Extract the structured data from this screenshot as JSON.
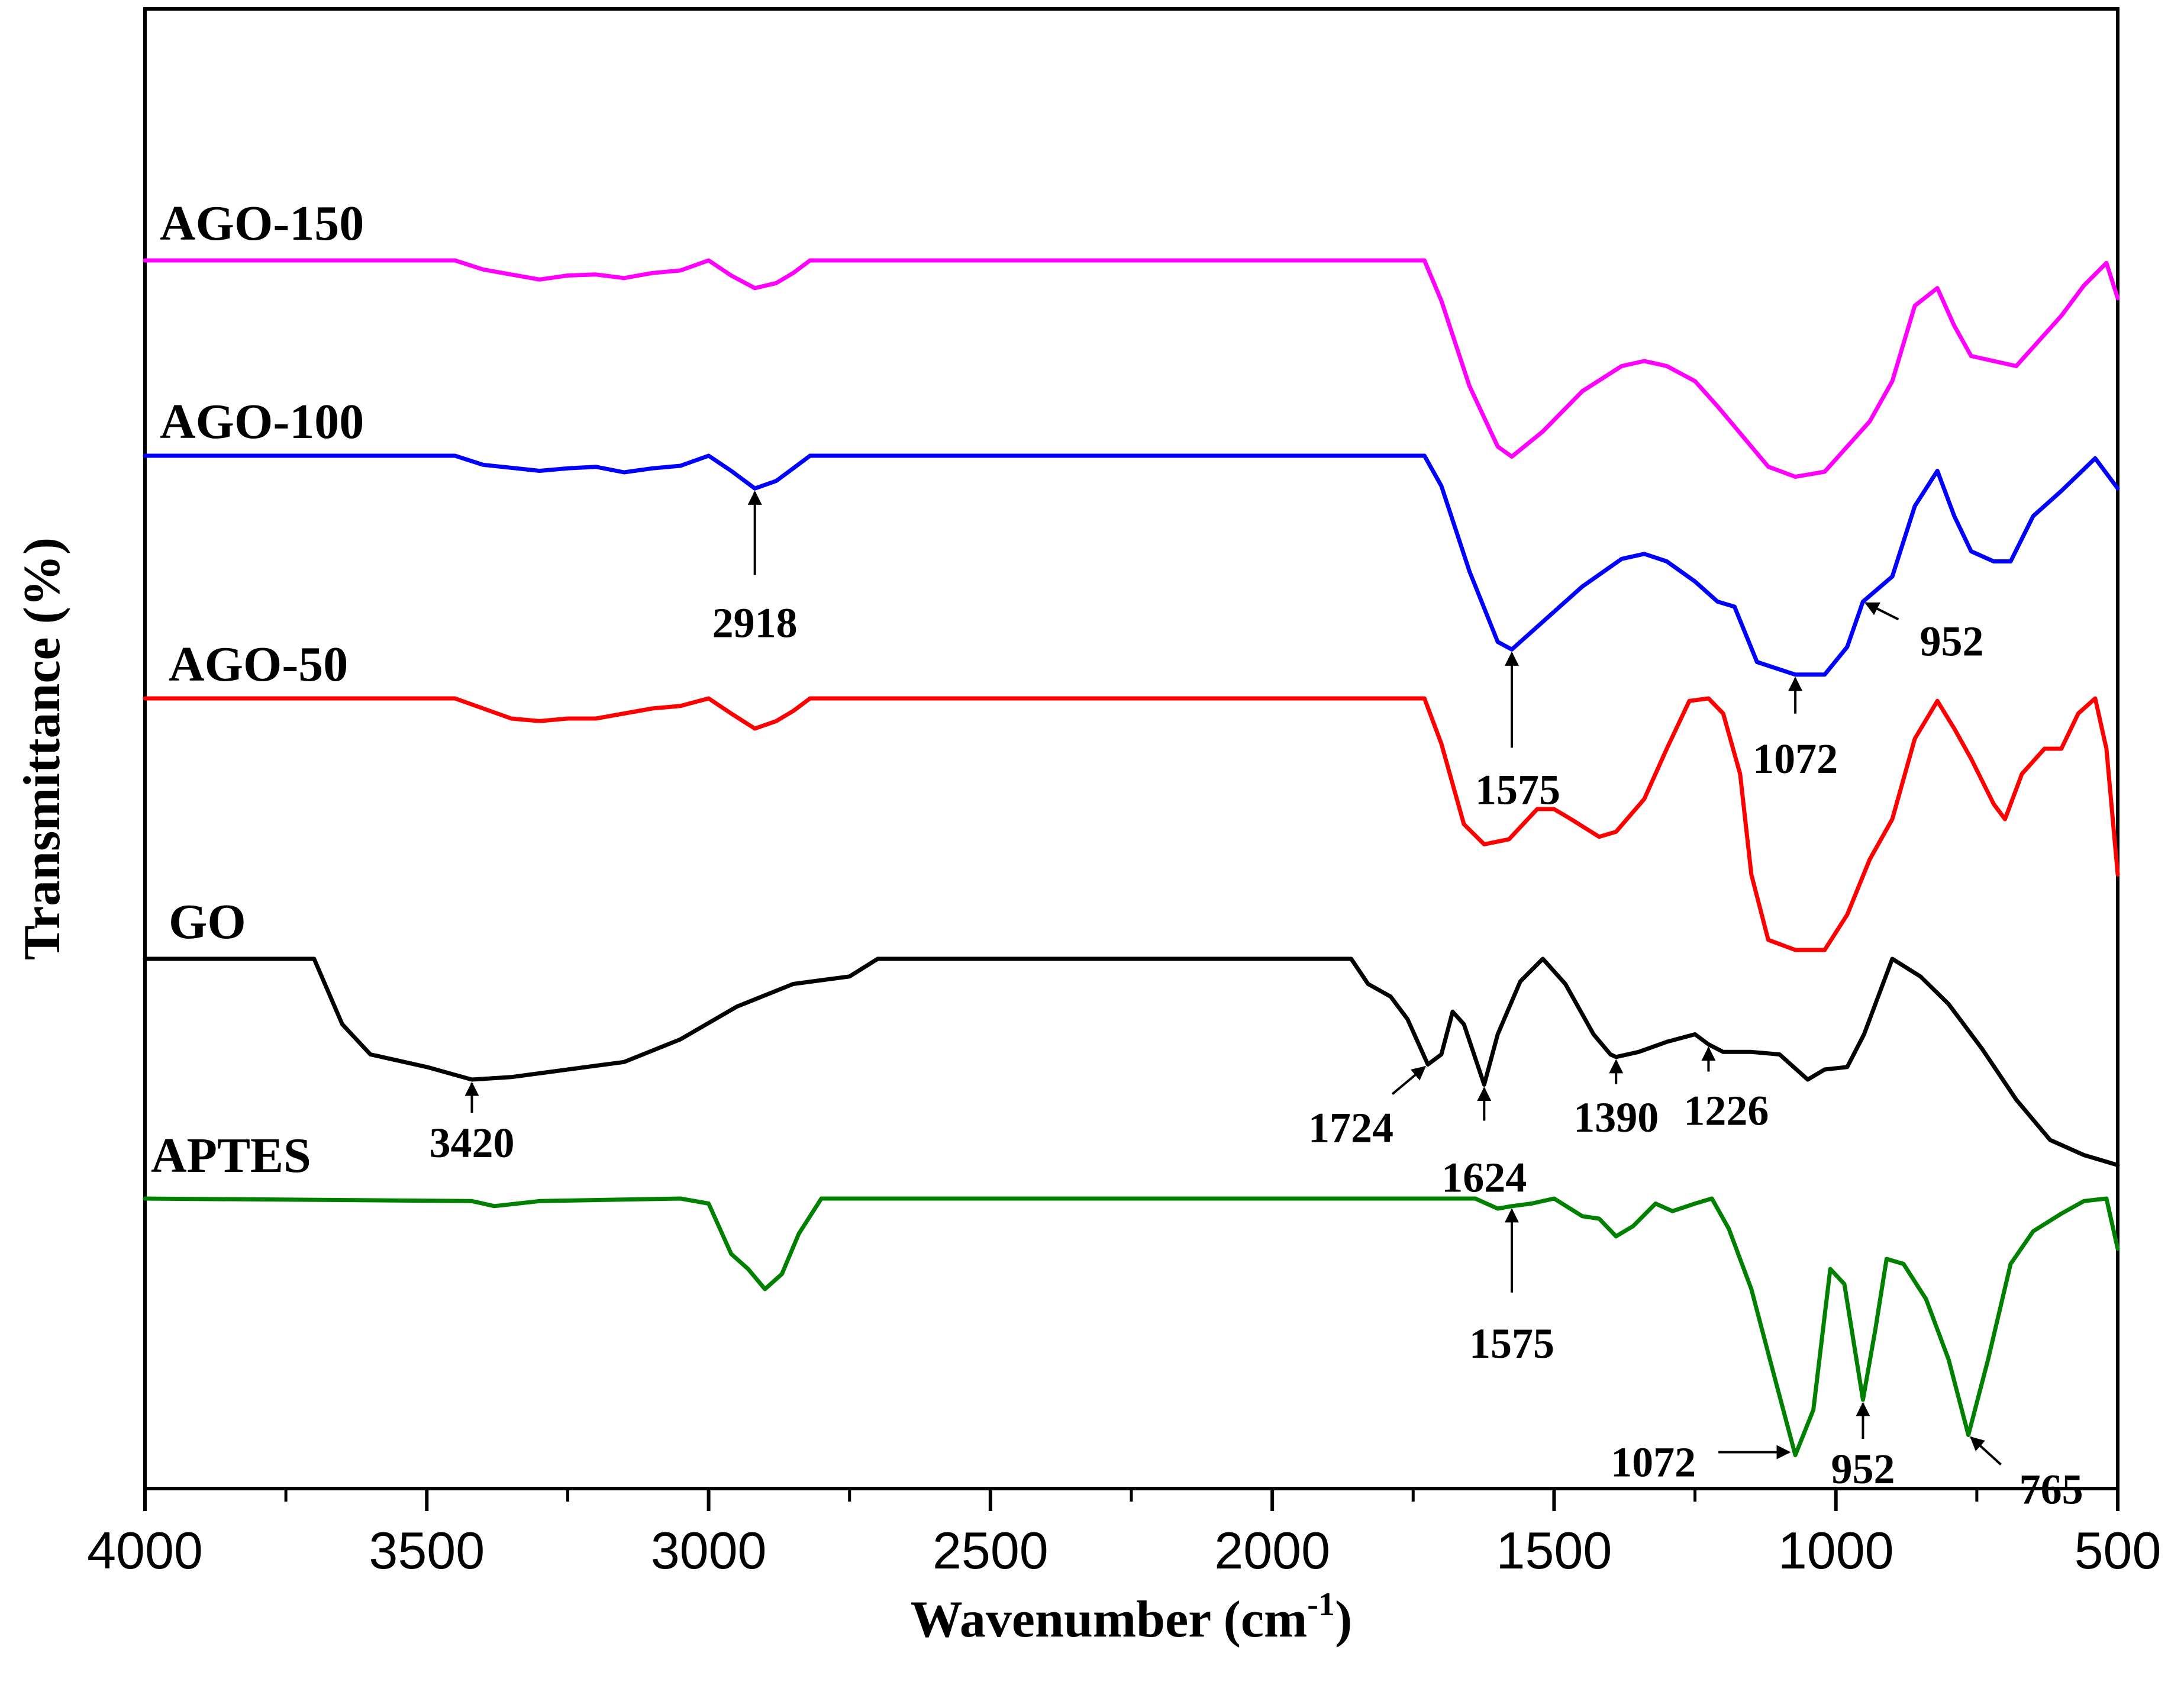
{
  "chart_data": {
    "type": "line",
    "title": "",
    "xlabel": "Wavenumber (cm",
    "xlabel_sup": "-1",
    "xlabel_close": ")",
    "ylabel": "Transmittance (%)",
    "xlim": [
      4000,
      500
    ],
    "x_ticks": [
      4000,
      3500,
      3000,
      2500,
      2000,
      1500,
      1000,
      500
    ],
    "series": [
      {
        "name": "AGO-150",
        "color": "#ff00ff",
        "baseline": 0.0,
        "points": [
          [
            4000,
            0
          ],
          [
            3450,
            0
          ],
          [
            3400,
            -0.18
          ],
          [
            3300,
            -0.38
          ],
          [
            3250,
            -0.3
          ],
          [
            3200,
            -0.28
          ],
          [
            3150,
            -0.35
          ],
          [
            3100,
            -0.25
          ],
          [
            3050,
            -0.2
          ],
          [
            3000,
            0
          ],
          [
            2960,
            -0.3
          ],
          [
            2918,
            -0.55
          ],
          [
            2880,
            -0.45
          ],
          [
            2850,
            -0.25
          ],
          [
            2820,
            0
          ],
          [
            1730,
            0
          ],
          [
            1700,
            -0.8
          ],
          [
            1650,
            -2.5
          ],
          [
            1600,
            -3.7
          ],
          [
            1575,
            -3.9
          ],
          [
            1520,
            -3.4
          ],
          [
            1450,
            -2.6
          ],
          [
            1380,
            -2.1
          ],
          [
            1340,
            -2.0
          ],
          [
            1300,
            -2.1
          ],
          [
            1250,
            -2.4
          ],
          [
            1210,
            -2.9
          ],
          [
            1180,
            -3.3
          ],
          [
            1120,
            -4.1
          ],
          [
            1072,
            -4.3
          ],
          [
            1020,
            -4.2
          ],
          [
            980,
            -3.7
          ],
          [
            940,
            -3.2
          ],
          [
            900,
            -2.4
          ],
          [
            860,
            -0.9
          ],
          [
            820,
            -0.55
          ],
          [
            790,
            -1.3
          ],
          [
            760,
            -1.9
          ],
          [
            720,
            -2.0
          ],
          [
            680,
            -2.1
          ],
          [
            640,
            -1.6
          ],
          [
            600,
            -1.1
          ],
          [
            560,
            -0.5
          ],
          [
            520,
            -0.05
          ],
          [
            500,
            -0.75
          ]
        ]
      },
      {
        "name": "AGO-100",
        "color": "#0000ff",
        "baseline": 0.0,
        "points": [
          [
            4000,
            0
          ],
          [
            3450,
            0
          ],
          [
            3400,
            -0.18
          ],
          [
            3300,
            -0.3
          ],
          [
            3250,
            -0.25
          ],
          [
            3200,
            -0.22
          ],
          [
            3150,
            -0.33
          ],
          [
            3100,
            -0.25
          ],
          [
            3050,
            -0.2
          ],
          [
            3000,
            0
          ],
          [
            2960,
            -0.3
          ],
          [
            2918,
            -0.65
          ],
          [
            2880,
            -0.5
          ],
          [
            2850,
            -0.25
          ],
          [
            2820,
            0
          ],
          [
            1730,
            0
          ],
          [
            1700,
            -0.6
          ],
          [
            1650,
            -2.3
          ],
          [
            1600,
            -3.7
          ],
          [
            1575,
            -3.85
          ],
          [
            1520,
            -3.3
          ],
          [
            1450,
            -2.6
          ],
          [
            1380,
            -2.05
          ],
          [
            1340,
            -1.95
          ],
          [
            1300,
            -2.1
          ],
          [
            1250,
            -2.5
          ],
          [
            1210,
            -2.9
          ],
          [
            1180,
            -3.0
          ],
          [
            1140,
            -4.1
          ],
          [
            1072,
            -4.35
          ],
          [
            1020,
            -4.35
          ],
          [
            980,
            -3.8
          ],
          [
            952,
            -2.9
          ],
          [
            900,
            -2.4
          ],
          [
            860,
            -1.0
          ],
          [
            820,
            -0.3
          ],
          [
            790,
            -1.2
          ],
          [
            760,
            -1.9
          ],
          [
            720,
            -2.1
          ],
          [
            690,
            -2.1
          ],
          [
            650,
            -1.2
          ],
          [
            600,
            -0.7
          ],
          [
            540,
            -0.05
          ],
          [
            500,
            -0.65
          ]
        ]
      },
      {
        "name": "AGO-50",
        "color": "#ff0000",
        "baseline": 0.0,
        "points": [
          [
            4000,
            0
          ],
          [
            3450,
            0
          ],
          [
            3400,
            -0.2
          ],
          [
            3350,
            -0.4
          ],
          [
            3300,
            -0.45
          ],
          [
            3250,
            -0.4
          ],
          [
            3200,
            -0.4
          ],
          [
            3150,
            -0.3
          ],
          [
            3100,
            -0.2
          ],
          [
            3050,
            -0.15
          ],
          [
            3000,
            0
          ],
          [
            2960,
            -0.3
          ],
          [
            2918,
            -0.6
          ],
          [
            2880,
            -0.45
          ],
          [
            2850,
            -0.25
          ],
          [
            2820,
            0
          ],
          [
            1730,
            0
          ],
          [
            1700,
            -0.9
          ],
          [
            1660,
            -2.5
          ],
          [
            1624,
            -2.9
          ],
          [
            1580,
            -2.8
          ],
          [
            1530,
            -2.2
          ],
          [
            1500,
            -2.2
          ],
          [
            1470,
            -2.4
          ],
          [
            1420,
            -2.75
          ],
          [
            1390,
            -2.65
          ],
          [
            1340,
            -2.0
          ],
          [
            1300,
            -1.0
          ],
          [
            1260,
            -0.05
          ],
          [
            1226,
            0
          ],
          [
            1200,
            -0.3
          ],
          [
            1170,
            -1.5
          ],
          [
            1150,
            -3.5
          ],
          [
            1120,
            -4.8
          ],
          [
            1072,
            -5.0
          ],
          [
            1020,
            -5.0
          ],
          [
            980,
            -4.3
          ],
          [
            940,
            -3.2
          ],
          [
            900,
            -2.4
          ],
          [
            860,
            -0.8
          ],
          [
            820,
            -0.05
          ],
          [
            790,
            -0.6
          ],
          [
            760,
            -1.2
          ],
          [
            720,
            -2.1
          ],
          [
            700,
            -2.4
          ],
          [
            670,
            -1.5
          ],
          [
            630,
            -1.0
          ],
          [
            600,
            -1.0
          ],
          [
            570,
            -0.3
          ],
          [
            540,
            0
          ],
          [
            520,
            -1.0
          ],
          [
            500,
            -3.5
          ]
        ]
      },
      {
        "name": "GO",
        "color": "#000000",
        "baseline": 0.0,
        "points": [
          [
            4000,
            0
          ],
          [
            3700,
            0
          ],
          [
            3650,
            -1.3
          ],
          [
            3600,
            -1.9
          ],
          [
            3500,
            -2.15
          ],
          [
            3420,
            -2.4
          ],
          [
            3350,
            -2.35
          ],
          [
            3250,
            -2.2
          ],
          [
            3150,
            -2.05
          ],
          [
            3050,
            -1.6
          ],
          [
            2950,
            -0.95
          ],
          [
            2850,
            -0.5
          ],
          [
            2750,
            -0.35
          ],
          [
            2700,
            0
          ],
          [
            1860,
            0
          ],
          [
            1830,
            -0.5
          ],
          [
            1790,
            -0.75
          ],
          [
            1760,
            -1.2
          ],
          [
            1724,
            -2.1
          ],
          [
            1700,
            -1.9
          ],
          [
            1680,
            -1.05
          ],
          [
            1660,
            -1.3
          ],
          [
            1624,
            -2.5
          ],
          [
            1600,
            -1.5
          ],
          [
            1560,
            -0.45
          ],
          [
            1520,
            0
          ],
          [
            1480,
            -0.5
          ],
          [
            1430,
            -1.5
          ],
          [
            1400,
            -1.9
          ],
          [
            1390,
            -1.95
          ],
          [
            1350,
            -1.85
          ],
          [
            1300,
            -1.65
          ],
          [
            1250,
            -1.5
          ],
          [
            1226,
            -1.7
          ],
          [
            1200,
            -1.85
          ],
          [
            1150,
            -1.85
          ],
          [
            1100,
            -1.9
          ],
          [
            1050,
            -2.4
          ],
          [
            1020,
            -2.2
          ],
          [
            980,
            -2.15
          ],
          [
            950,
            -1.5
          ],
          [
            900,
            0
          ],
          [
            850,
            -0.35
          ],
          [
            800,
            -0.9
          ],
          [
            740,
            -1.8
          ],
          [
            680,
            -2.8
          ],
          [
            620,
            -3.6
          ],
          [
            560,
            -3.9
          ],
          [
            500,
            -4.1
          ]
        ]
      },
      {
        "name": "APTES",
        "color": "#008000",
        "baseline": 0.0,
        "points": [
          [
            4000,
            0
          ],
          [
            3420,
            -0.05
          ],
          [
            3380,
            -0.15
          ],
          [
            3300,
            -0.05
          ],
          [
            3050,
            0
          ],
          [
            3000,
            -0.1
          ],
          [
            2960,
            -1.1
          ],
          [
            2930,
            -1.4
          ],
          [
            2900,
            -1.8
          ],
          [
            2870,
            -1.5
          ],
          [
            2840,
            -0.7
          ],
          [
            2800,
            0
          ],
          [
            1640,
            0
          ],
          [
            1600,
            -0.2
          ],
          [
            1575,
            -0.15
          ],
          [
            1540,
            -0.1
          ],
          [
            1500,
            0
          ],
          [
            1450,
            -0.35
          ],
          [
            1420,
            -0.4
          ],
          [
            1390,
            -0.75
          ],
          [
            1360,
            -0.55
          ],
          [
            1320,
            -0.1
          ],
          [
            1290,
            -0.25
          ],
          [
            1250,
            -0.1
          ],
          [
            1220,
            0
          ],
          [
            1190,
            -0.6
          ],
          [
            1150,
            -1.8
          ],
          [
            1110,
            -3.5
          ],
          [
            1072,
            -5.1
          ],
          [
            1040,
            -4.2
          ],
          [
            1010,
            -1.4
          ],
          [
            985,
            -1.7
          ],
          [
            952,
            -4.0
          ],
          [
            930,
            -2.6
          ],
          [
            910,
            -1.2
          ],
          [
            880,
            -1.3
          ],
          [
            840,
            -2.0
          ],
          [
            800,
            -3.2
          ],
          [
            765,
            -4.7
          ],
          [
            730,
            -3.2
          ],
          [
            690,
            -1.3
          ],
          [
            650,
            -0.65
          ],
          [
            600,
            -0.3
          ],
          [
            560,
            -0.05
          ],
          [
            520,
            0
          ],
          [
            500,
            -1.0
          ]
        ]
      }
    ],
    "annotations": [
      {
        "label": "2918",
        "series": "AGO-100",
        "x": 2918
      },
      {
        "label": "952",
        "series": "AGO-100",
        "x": 952
      },
      {
        "label": "1575",
        "series": "AGO-100",
        "x": 1575
      },
      {
        "label": "1072",
        "series": "AGO-100",
        "x": 1072
      },
      {
        "label": "3420",
        "series": "GO",
        "x": 3420
      },
      {
        "label": "1724",
        "series": "GO",
        "x": 1724
      },
      {
        "label": "1624",
        "series": "GO",
        "x": 1624
      },
      {
        "label": "1390",
        "series": "GO",
        "x": 1390
      },
      {
        "label": "1226",
        "series": "GO",
        "x": 1226
      },
      {
        "label": "1575",
        "series": "APTES",
        "x": 1575
      },
      {
        "label": "1072",
        "series": "APTES",
        "x": 1072
      },
      {
        "label": "952",
        "series": "APTES",
        "x": 952
      },
      {
        "label": "765",
        "series": "APTES",
        "x": 765
      }
    ]
  }
}
